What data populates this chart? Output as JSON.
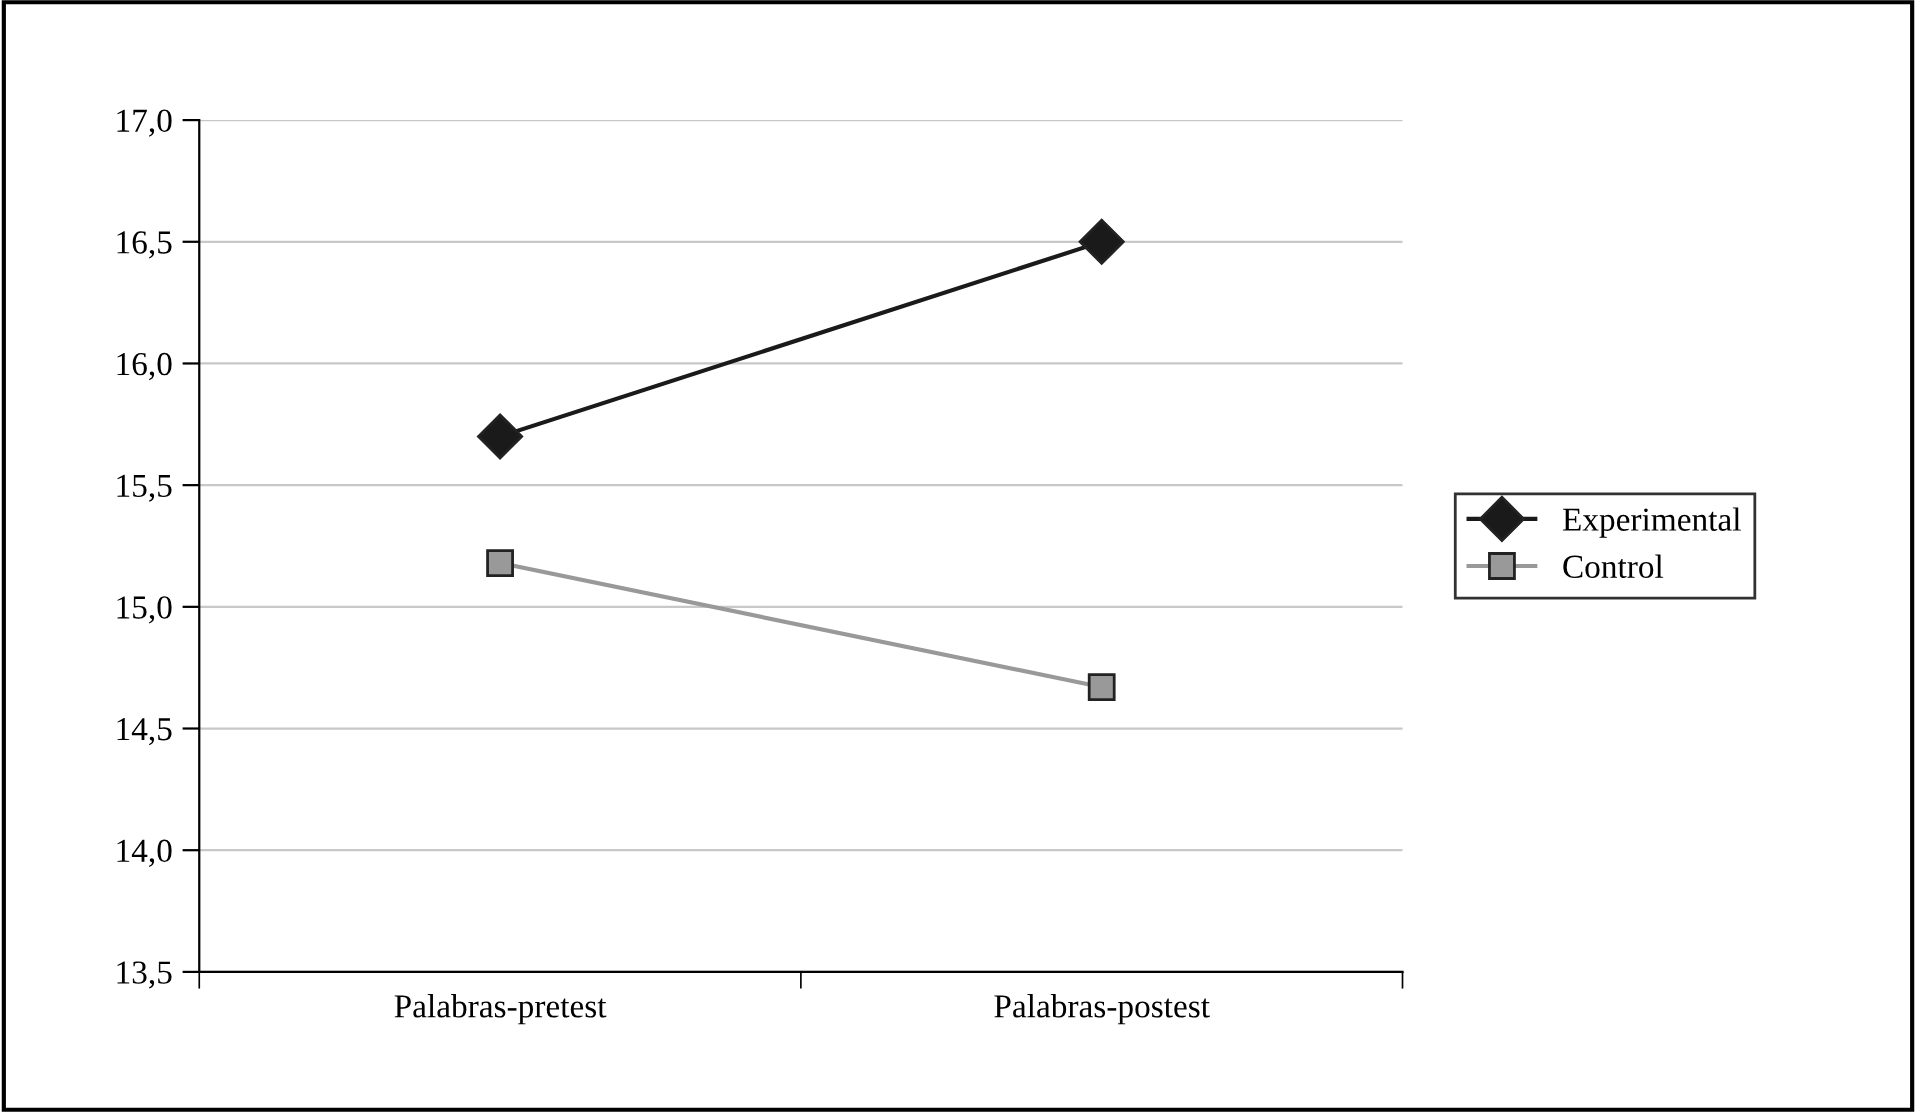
{
  "chart_data": {
    "type": "line",
    "categories": [
      "Palabras-pretest",
      "Palabras-postest"
    ],
    "series": [
      {
        "name": "Experimental",
        "color": "#1a1a1a",
        "marker": "diamond",
        "values": [
          15.7,
          16.5
        ]
      },
      {
        "name": "Control",
        "color": "#999999",
        "marker": "square",
        "values": [
          15.18,
          14.67
        ]
      }
    ],
    "ylim": [
      13.5,
      17.0
    ],
    "yticks": [
      {
        "value": 13.5,
        "label": "13,5"
      },
      {
        "value": 14.0,
        "label": "14,0"
      },
      {
        "value": 14.5,
        "label": "14,5"
      },
      {
        "value": 15.0,
        "label": "15,0"
      },
      {
        "value": 15.5,
        "label": "15,5"
      },
      {
        "value": 16.0,
        "label": "16,0"
      },
      {
        "value": 16.5,
        "label": "16,5"
      },
      {
        "value": 17.0,
        "label": "17,0"
      }
    ],
    "grid": "y",
    "legend": "right",
    "line_style": "solid"
  }
}
